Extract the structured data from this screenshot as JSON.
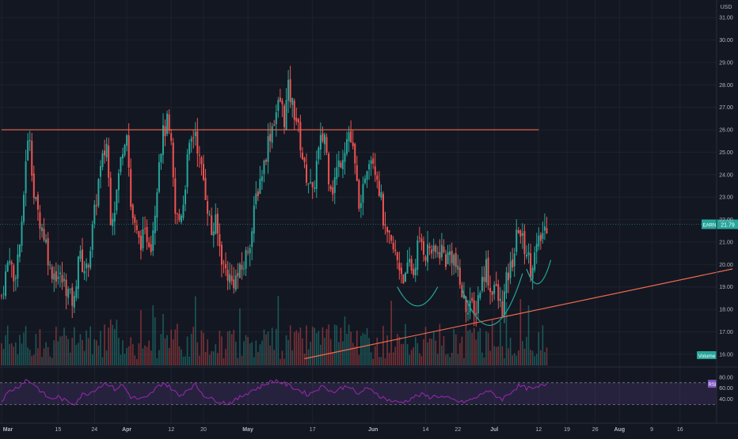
{
  "chart_data": {
    "type": "candlestick",
    "currency": "USD",
    "price_axis": {
      "min": 15.5,
      "max": 31.5,
      "ticks": [
        16,
        17,
        18,
        19,
        20,
        21,
        22,
        23,
        24,
        25,
        26,
        27,
        28,
        29,
        30,
        31
      ],
      "tick_labels": [
        "16.00",
        "17.00",
        "18.00",
        "19.00",
        "20.00",
        "21.00",
        "22.00",
        "23.00",
        "24.00",
        "25.00",
        "26.00",
        "27.00",
        "28.00",
        "29.00",
        "30.00",
        "31.00"
      ]
    },
    "time_axis": {
      "labels": [
        {
          "text": "Mar",
          "day": 0,
          "bold": true
        },
        {
          "text": "15",
          "day": 14,
          "bold": false
        },
        {
          "text": "24",
          "day": 23,
          "bold": false
        },
        {
          "text": "Apr",
          "day": 31,
          "bold": true
        },
        {
          "text": "12",
          "day": 42,
          "bold": false
        },
        {
          "text": "20",
          "day": 50,
          "bold": false
        },
        {
          "text": "May",
          "day": 61,
          "bold": true
        },
        {
          "text": "17",
          "day": 77,
          "bold": false
        },
        {
          "text": "Jun",
          "day": 92,
          "bold": true
        },
        {
          "text": "14",
          "day": 105,
          "bold": false
        },
        {
          "text": "22",
          "day": 113,
          "bold": false
        },
        {
          "text": "Jul",
          "day": 122,
          "bold": true
        },
        {
          "text": "12",
          "day": 133,
          "bold": false
        },
        {
          "text": "19",
          "day": 140,
          "bold": false
        },
        {
          "text": "26",
          "day": 147,
          "bold": false
        },
        {
          "text": "Aug",
          "day": 153,
          "bold": true
        },
        {
          "text": "9",
          "day": 161,
          "bold": false
        },
        {
          "text": "16",
          "day": 168,
          "bold": false
        }
      ],
      "data_end_day": 135
    },
    "close_path": [
      [
        0,
        18.6
      ],
      [
        2,
        20.5
      ],
      [
        3,
        19.2
      ],
      [
        5,
        21.5
      ],
      [
        6,
        24.8
      ],
      [
        7,
        25.8
      ],
      [
        8,
        23.0
      ],
      [
        9,
        22.3
      ],
      [
        11,
        21.0
      ],
      [
        12,
        19.8
      ],
      [
        14,
        19.5
      ],
      [
        16,
        19.0
      ],
      [
        17,
        18.5
      ],
      [
        18,
        18.3
      ],
      [
        19,
        20.5
      ],
      [
        20,
        20.0
      ],
      [
        21,
        19.7
      ],
      [
        22,
        20.8
      ],
      [
        24,
        23.7
      ],
      [
        25,
        24.6
      ],
      [
        26,
        25.4
      ],
      [
        27,
        22.2
      ],
      [
        28,
        22.6
      ],
      [
        30,
        25.3
      ],
      [
        31,
        26.1
      ],
      [
        32,
        22.6
      ],
      [
        33,
        21.6
      ],
      [
        34,
        21.0
      ],
      [
        36,
        21.3
      ],
      [
        37,
        21.0
      ],
      [
        38,
        22.5
      ],
      [
        39,
        24.8
      ],
      [
        40,
        25.8
      ],
      [
        41,
        26.3
      ],
      [
        42,
        25.1
      ],
      [
        43,
        22.2
      ],
      [
        44,
        22.0
      ],
      [
        45,
        22.8
      ],
      [
        46,
        24.6
      ],
      [
        47,
        25.5
      ],
      [
        48,
        26.0
      ],
      [
        49,
        24.6
      ],
      [
        50,
        23.8
      ],
      [
        51,
        22.6
      ],
      [
        52,
        21.4
      ],
      [
        53,
        21.8
      ],
      [
        54,
        20.8
      ],
      [
        55,
        19.9
      ],
      [
        56,
        19.6
      ],
      [
        57,
        19.2
      ],
      [
        58,
        19.4
      ],
      [
        59,
        19.6
      ],
      [
        60,
        20.0
      ],
      [
        61,
        20.8
      ],
      [
        62,
        21.5
      ],
      [
        63,
        23.0
      ],
      [
        64,
        23.8
      ],
      [
        65,
        24.5
      ],
      [
        66,
        25.5
      ],
      [
        67,
        26.2
      ],
      [
        68,
        26.8
      ],
      [
        69,
        27.3
      ],
      [
        70,
        26.5
      ],
      [
        71,
        27.8
      ],
      [
        72,
        27.1
      ],
      [
        73,
        26.5
      ],
      [
        74,
        25.4
      ],
      [
        75,
        24.2
      ],
      [
        76,
        23.8
      ],
      [
        77,
        23.0
      ],
      [
        78,
        24.5
      ],
      [
        79,
        25.4
      ],
      [
        80,
        25.8
      ],
      [
        81,
        24.0
      ],
      [
        82,
        23.4
      ],
      [
        83,
        24.2
      ],
      [
        84,
        24.7
      ],
      [
        85,
        25.3
      ],
      [
        86,
        25.9
      ],
      [
        87,
        25.0
      ],
      [
        88,
        23.5
      ],
      [
        89,
        22.3
      ],
      [
        90,
        24.1
      ],
      [
        91,
        24.9
      ],
      [
        92,
        24.8
      ],
      [
        93,
        24.0
      ],
      [
        94,
        22.8
      ],
      [
        95,
        21.3
      ],
      [
        96,
        21.0
      ],
      [
        97,
        20.6
      ],
      [
        98,
        20.2
      ],
      [
        99,
        19.7
      ],
      [
        100,
        19.3
      ],
      [
        101,
        20.1
      ],
      [
        102,
        19.6
      ],
      [
        103,
        20.8
      ],
      [
        104,
        21.0
      ],
      [
        105,
        20.5
      ],
      [
        106,
        20.8
      ],
      [
        107,
        20.4
      ],
      [
        108,
        20.5
      ],
      [
        109,
        20.7
      ],
      [
        110,
        20.2
      ],
      [
        111,
        20.5
      ],
      [
        112,
        20.3
      ],
      [
        113,
        19.5
      ],
      [
        114,
        18.7
      ],
      [
        115,
        18.1
      ],
      [
        116,
        18.4
      ],
      [
        117,
        17.6
      ],
      [
        118,
        18.6
      ],
      [
        119,
        19.3
      ],
      [
        120,
        20.0
      ],
      [
        121,
        18.8
      ],
      [
        122,
        19.1
      ],
      [
        123,
        18.4
      ],
      [
        124,
        18.0
      ],
      [
        125,
        19.2
      ],
      [
        126,
        19.8
      ],
      [
        127,
        20.6
      ],
      [
        128,
        21.7
      ],
      [
        129,
        21.0
      ],
      [
        130,
        20.6
      ],
      [
        131,
        19.9
      ],
      [
        132,
        20.4
      ],
      [
        133,
        20.9
      ],
      [
        134,
        21.4
      ],
      [
        135,
        21.8
      ]
    ],
    "last_price": "21.79",
    "symbol": "EARN",
    "annotations": {
      "resistance_line": {
        "color": "#ef6a4f",
        "x1_day": 0,
        "x2_day": 133,
        "price": 26.0
      },
      "trend_line": {
        "color": "#ef6a4f",
        "x1_day": 75,
        "price1": 15.8,
        "x2_day": 181,
        "price2": 19.8
      },
      "arcs": [
        {
          "color": "#26a69a",
          "start_day": 98,
          "start_price": 19.0,
          "end_day": 108,
          "end_price": 19.0,
          "bottom_price": 18.15
        },
        {
          "color": "#26a69a",
          "start_day": 114,
          "start_price": 18.9,
          "end_day": 129,
          "end_price": 19.6,
          "bottom_price": 17.3
        },
        {
          "color": "#26a69a",
          "start_day": 130,
          "start_price": 19.8,
          "end_day": 136,
          "end_price": 20.2,
          "bottom_price": 19.15
        }
      ]
    },
    "volume_label": "Volume",
    "rsi": {
      "label": "RSI",
      "ticks": [
        80,
        60,
        40
      ],
      "tick_labels": [
        "80.00",
        "60.00",
        "40.00"
      ],
      "upper_band": 70,
      "lower_band": 30,
      "path": [
        [
          0,
          38
        ],
        [
          2,
          55
        ],
        [
          4,
          62
        ],
        [
          6,
          75
        ],
        [
          8,
          68
        ],
        [
          10,
          52
        ],
        [
          12,
          40
        ],
        [
          14,
          44
        ],
        [
          16,
          36
        ],
        [
          18,
          32
        ],
        [
          20,
          48
        ],
        [
          22,
          52
        ],
        [
          24,
          62
        ],
        [
          26,
          70
        ],
        [
          28,
          58
        ],
        [
          30,
          66
        ],
        [
          32,
          44
        ],
        [
          34,
          40
        ],
        [
          36,
          42
        ],
        [
          38,
          58
        ],
        [
          40,
          70
        ],
        [
          42,
          60
        ],
        [
          44,
          45
        ],
        [
          46,
          58
        ],
        [
          48,
          66
        ],
        [
          50,
          48
        ],
        [
          52,
          40
        ],
        [
          54,
          36
        ],
        [
          56,
          32
        ],
        [
          58,
          38
        ],
        [
          60,
          48
        ],
        [
          62,
          56
        ],
        [
          64,
          62
        ],
        [
          66,
          70
        ],
        [
          68,
          74
        ],
        [
          70,
          68
        ],
        [
          72,
          62
        ],
        [
          74,
          55
        ],
        [
          76,
          48
        ],
        [
          78,
          58
        ],
        [
          80,
          64
        ],
        [
          82,
          52
        ],
        [
          84,
          60
        ],
        [
          86,
          65
        ],
        [
          88,
          48
        ],
        [
          90,
          58
        ],
        [
          92,
          56
        ],
        [
          94,
          44
        ],
        [
          96,
          38
        ],
        [
          98,
          34
        ],
        [
          100,
          36
        ],
        [
          102,
          44
        ],
        [
          104,
          48
        ],
        [
          106,
          44
        ],
        [
          108,
          46
        ],
        [
          110,
          42
        ],
        [
          112,
          38
        ],
        [
          114,
          34
        ],
        [
          116,
          38
        ],
        [
          118,
          44
        ],
        [
          120,
          56
        ],
        [
          122,
          48
        ],
        [
          124,
          40
        ],
        [
          126,
          52
        ],
        [
          128,
          64
        ],
        [
          130,
          60
        ],
        [
          132,
          58
        ],
        [
          134,
          66
        ],
        [
          135,
          68
        ]
      ]
    }
  }
}
